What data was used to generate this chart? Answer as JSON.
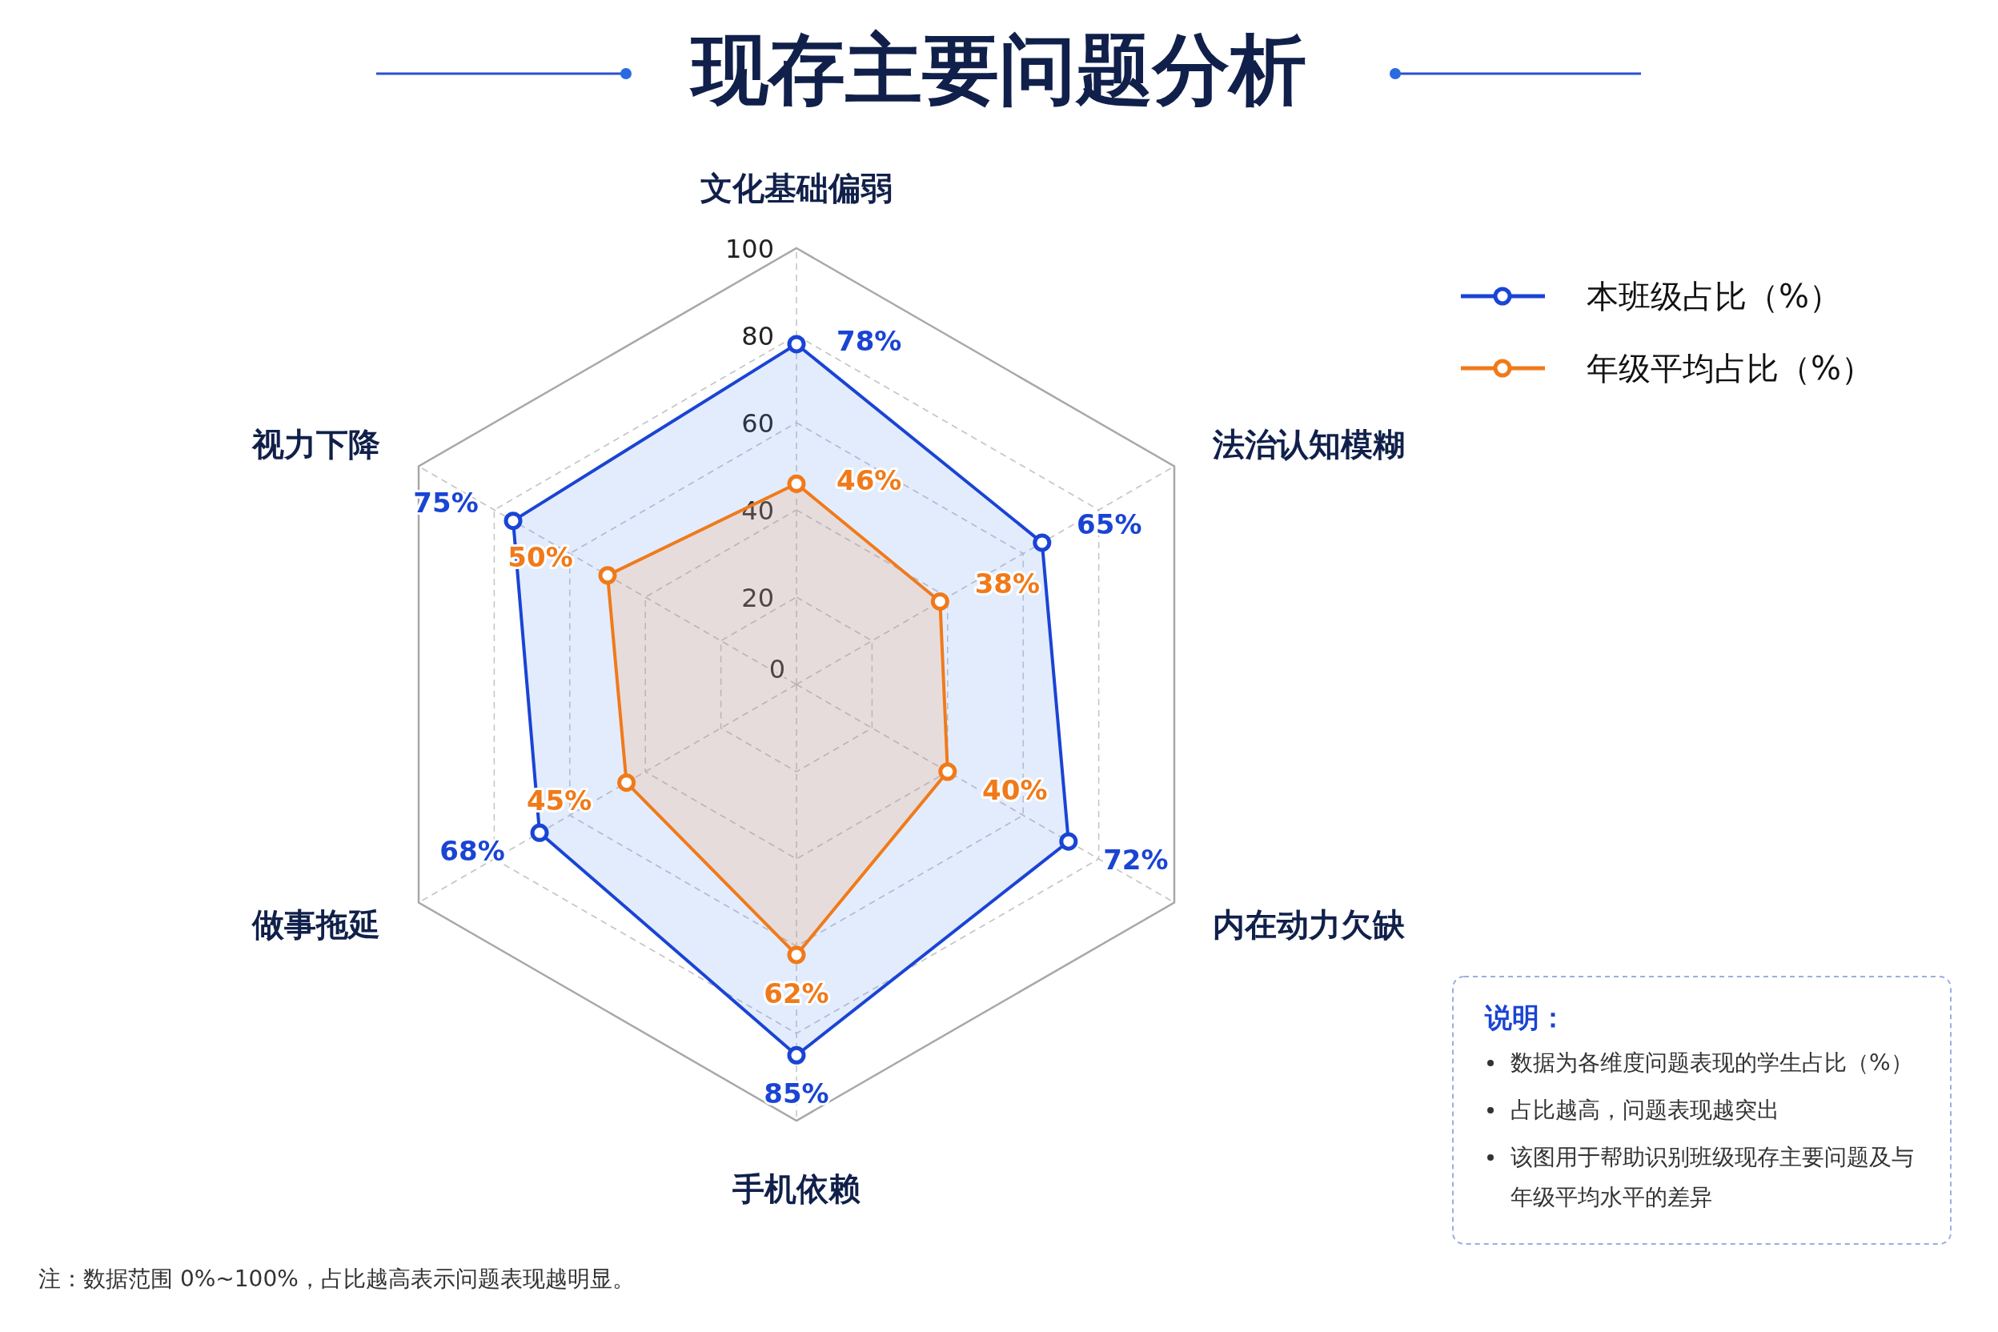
{
  "chart_data": {
    "type": "radar",
    "title": "现存主要问题分析",
    "categories": [
      "文化基础偏弱",
      "法治认知模糊",
      "内在动力欠缺",
      "手机依赖",
      "做事拖延",
      "视力下降"
    ],
    "series": [
      {
        "name": "本班级占比（%）",
        "color": "#1a44d4",
        "values": [
          78,
          65,
          72,
          85,
          68,
          75
        ],
        "value_labels": [
          "78%",
          "65%",
          "72%",
          "85%",
          "68%",
          "75%"
        ]
      },
      {
        "name": "年级平均占比（%）",
        "color": "#f07a1a",
        "values": [
          46,
          38,
          40,
          62,
          45,
          50
        ],
        "value_labels": [
          "46%",
          "38%",
          "40%",
          "62%",
          "45%",
          "50%"
        ]
      }
    ],
    "ylim": [
      0,
      100
    ],
    "yticks": [
      0,
      20,
      40,
      60,
      80,
      100
    ],
    "grid": true,
    "legend": "top right",
    "marker": "circle",
    "annotations": [
      "说明：",
      "数据为各维度问题表现的学生占比（%）",
      "占比越高，问题表现越突出",
      "该图用于帮助识别班级现存主要问题及与年级平均水平的差异",
      "注：数据范围 0%~100%，占比越高表示问题表现越明显。"
    ]
  }
}
